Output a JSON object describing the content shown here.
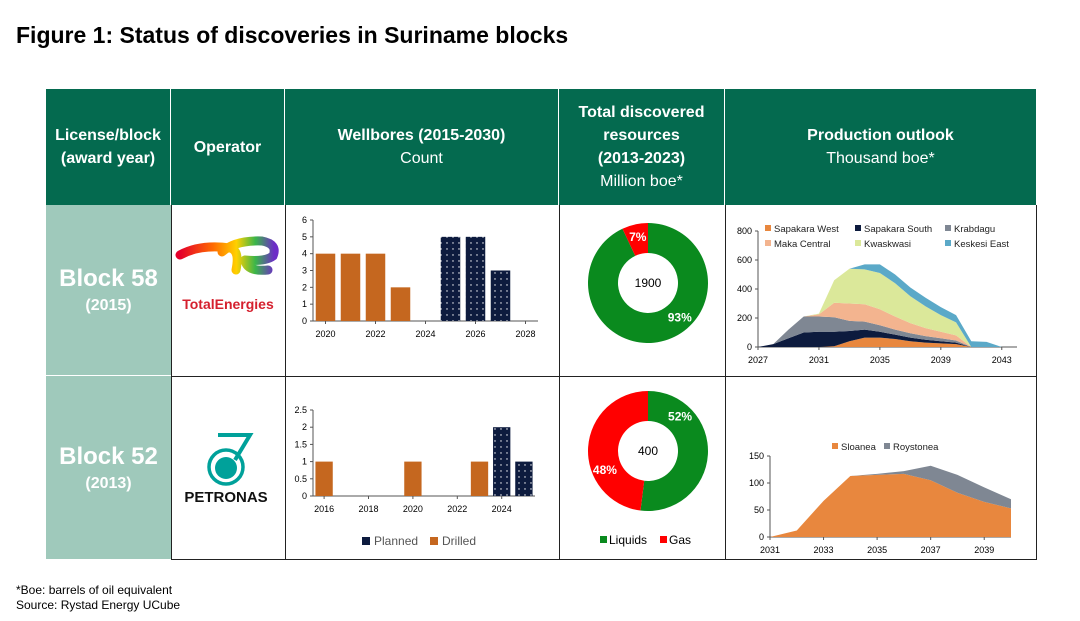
{
  "title": "Figure 1: Status of discoveries in Suriname blocks",
  "headers": {
    "block": [
      "License/block",
      "(award year)"
    ],
    "operator": "Operator",
    "wellbores": {
      "title": "Wellbores (2015-2030)",
      "unit": "Count"
    },
    "resources": {
      "title": [
        "Total discovered",
        "resources",
        "(2013-2023)"
      ],
      "unit": "Million boe*"
    },
    "production": {
      "title": "Production outlook",
      "unit": "Thousand boe*"
    }
  },
  "rows": [
    {
      "block": "Block 58",
      "year": "(2015)",
      "operator": "TotalEnergies",
      "logo_text": "TotalEnergies"
    },
    {
      "block": "Block 52",
      "year": "(2013)",
      "operator": "PETRONAS",
      "logo_text": "PETRONAS"
    }
  ],
  "colors": {
    "header": "#046a4f",
    "block_cell": "#9fc9bb",
    "drilled": "#c5671f",
    "planned": "#0d1b3e",
    "liquids": "#0a8a1e",
    "gas": "#ff0000"
  },
  "footnotes": [
    "*Boe: barrels of oil equivalent",
    "Source: Rystad Energy UCube"
  ],
  "chart_data": [
    {
      "id": "wells58",
      "type": "bar",
      "ylim": [
        0,
        6
      ],
      "yticks": [
        0,
        1,
        2,
        3,
        4,
        5,
        6
      ],
      "xlim": [
        2019.5,
        2028.5
      ],
      "xticks": [
        2020,
        2022,
        2024,
        2026,
        2028
      ],
      "series": [
        {
          "name": "Drilled",
          "x": [
            2020,
            2021,
            2022,
            2023
          ],
          "values": [
            4,
            4,
            4,
            2
          ]
        },
        {
          "name": "Planned",
          "x": [
            2025,
            2026,
            2027
          ],
          "values": [
            5,
            5,
            3
          ]
        }
      ]
    },
    {
      "id": "wells52",
      "type": "bar",
      "ylim": [
        0,
        2.5
      ],
      "yticks": [
        0,
        0.5,
        1,
        1.5,
        2,
        2.5
      ],
      "xlim": [
        2015.5,
        2025.5
      ],
      "xticks": [
        2016,
        2018,
        2020,
        2022,
        2024
      ],
      "legend": [
        "Planned",
        "Drilled"
      ],
      "series": [
        {
          "name": "Drilled",
          "x": [
            2016,
            2020,
            2023
          ],
          "values": [
            1,
            1,
            1
          ]
        },
        {
          "name": "Planned",
          "x": [
            2024,
            2025
          ],
          "values": [
            2,
            1
          ]
        }
      ]
    },
    {
      "id": "res58",
      "type": "pie",
      "center_label": "1900",
      "slices": [
        {
          "name": "Liquids",
          "value": 93,
          "label": "93%"
        },
        {
          "name": "Gas",
          "value": 7,
          "label": "7%"
        }
      ]
    },
    {
      "id": "res52",
      "type": "pie",
      "center_label": "400",
      "legend": [
        "Liquids",
        "Gas"
      ],
      "slices": [
        {
          "name": "Liquids",
          "value": 52,
          "label": "52%"
        },
        {
          "name": "Gas",
          "value": 48,
          "label": "48%"
        }
      ]
    },
    {
      "id": "prod58",
      "type": "area",
      "stacked": true,
      "ylim": [
        0,
        800
      ],
      "yticks": [
        0,
        200,
        400,
        600,
        800
      ],
      "xlim": [
        2027,
        2044
      ],
      "xticks": [
        2027,
        2031,
        2035,
        2039,
        2043
      ],
      "legend": "top",
      "x": [
        2027,
        2028,
        2029,
        2030,
        2031,
        2032,
        2033,
        2034,
        2035,
        2036,
        2037,
        2038,
        2039,
        2040,
        2041,
        2042,
        2043,
        2044
      ],
      "series": [
        {
          "name": "Sapakara West",
          "color": "#e8873e",
          "values": [
            0,
            0,
            0,
            0,
            0,
            5,
            40,
            65,
            65,
            55,
            40,
            30,
            25,
            20,
            0,
            0,
            0,
            0
          ]
        },
        {
          "name": "Sapakara South",
          "color": "#0d1b3e",
          "values": [
            0,
            20,
            60,
            100,
            105,
            100,
            70,
            55,
            40,
            30,
            25,
            20,
            15,
            10,
            0,
            0,
            0,
            0
          ]
        },
        {
          "name": "Krabdagu",
          "color": "#7f8793",
          "values": [
            0,
            0,
            60,
            110,
            105,
            100,
            70,
            55,
            45,
            35,
            30,
            25,
            20,
            15,
            0,
            0,
            0,
            0
          ]
        },
        {
          "name": "Maka Central",
          "color": "#f3b48f",
          "values": [
            0,
            0,
            0,
            0,
            15,
            100,
            120,
            120,
            110,
            90,
            70,
            55,
            45,
            35,
            0,
            0,
            0,
            0
          ]
        },
        {
          "name": "Kwaskwasi",
          "color": "#dbe89a",
          "values": [
            0,
            0,
            0,
            0,
            5,
            155,
            240,
            240,
            250,
            230,
            185,
            150,
            115,
            90,
            0,
            0,
            0,
            0
          ]
        },
        {
          "name": "Keskesi East",
          "color": "#5ba9c8",
          "values": [
            0,
            0,
            0,
            0,
            0,
            0,
            0,
            35,
            60,
            60,
            60,
            60,
            55,
            50,
            40,
            35,
            0,
            0
          ]
        }
      ]
    },
    {
      "id": "prod52",
      "type": "area",
      "stacked": true,
      "ylim": [
        0,
        150
      ],
      "yticks": [
        0,
        50,
        100,
        150
      ],
      "xlim": [
        2031,
        2040
      ],
      "xticks": [
        2031,
        2033,
        2035,
        2037,
        2039
      ],
      "legend": "top",
      "x": [
        2031,
        2032,
        2033,
        2034,
        2035,
        2036,
        2037,
        2038,
        2039,
        2040
      ],
      "series": [
        {
          "name": "Sloanea",
          "color": "#e8873e",
          "values": [
            0,
            12,
            67,
            113,
            115,
            117,
            105,
            82,
            65,
            53
          ]
        },
        {
          "name": "Roystonea",
          "color": "#7f8793",
          "values": [
            0,
            0,
            0,
            0,
            2,
            5,
            27,
            33,
            27,
            17
          ]
        }
      ]
    }
  ]
}
